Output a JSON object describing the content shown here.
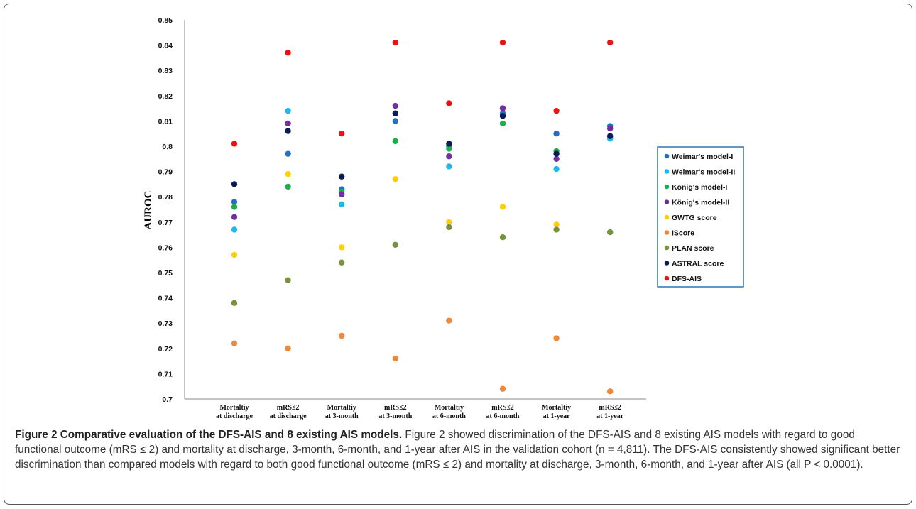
{
  "chart_data": {
    "type": "scatter",
    "title": "",
    "xlabel": "",
    "ylabel": "AUROC",
    "ylim": [
      0.7,
      0.85
    ],
    "ytick_step": 0.01,
    "y_tick_labels": [
      "0.7",
      "0.71",
      "0.72",
      "0.73",
      "0.74",
      "0.75",
      "0.76",
      "0.77",
      "0.78",
      "0.79",
      "0.8",
      "0.81",
      "0.82",
      "0.83",
      "0.84",
      "0.85"
    ],
    "grid": false,
    "legend_position": "right",
    "categories": [
      [
        "Mortaltiy",
        "at discharge"
      ],
      [
        "mRS≤2",
        "at discharge"
      ],
      [
        "Mortaltiy",
        "at 3-month"
      ],
      [
        "mRS≤2",
        "at 3-month"
      ],
      [
        "Mortaltiy",
        "at 6-month"
      ],
      [
        "mRS≤2",
        "at 6-month"
      ],
      [
        "Mortaltiy",
        "at 1-year"
      ],
      [
        "mRS≤2",
        "at 1-year"
      ]
    ],
    "series": [
      {
        "name": "Weimar's model-I",
        "color": "#1f6fc6",
        "values": [
          0.778,
          0.797,
          0.783,
          0.81,
          0.8,
          0.813,
          0.805,
          0.808
        ]
      },
      {
        "name": "Weimar's model-II",
        "color": "#1ab9ef",
        "values": [
          0.767,
          0.814,
          0.777,
          null,
          0.792,
          null,
          0.791,
          0.803
        ]
      },
      {
        "name": "König's model-I",
        "color": "#19b04c",
        "values": [
          0.776,
          0.784,
          0.782,
          0.802,
          0.799,
          0.809,
          0.798,
          0.804
        ]
      },
      {
        "name": "König's model-II",
        "color": "#7030a0",
        "values": [
          0.772,
          0.809,
          0.781,
          0.816,
          0.796,
          0.815,
          0.795,
          0.807
        ]
      },
      {
        "name": "GWTG score",
        "color": "#ffd000",
        "values": [
          0.757,
          0.789,
          0.76,
          0.787,
          0.77,
          0.776,
          0.769,
          0.766
        ]
      },
      {
        "name": "IScore",
        "color": "#f0883a",
        "values": [
          0.722,
          0.72,
          0.725,
          0.716,
          0.731,
          0.704,
          0.724,
          0.703
        ]
      },
      {
        "name": "PLAN score",
        "color": "#77933c",
        "values": [
          0.738,
          0.747,
          0.754,
          0.761,
          0.768,
          0.764,
          0.767,
          0.766
        ]
      },
      {
        "name": "ASTRAL score",
        "color": "#0c1a55",
        "values": [
          0.785,
          0.806,
          0.788,
          0.813,
          0.801,
          0.812,
          0.797,
          0.804
        ]
      },
      {
        "name": "DFS-AIS",
        "color": "#ee1111",
        "values": [
          0.801,
          0.837,
          0.805,
          0.841,
          0.817,
          0.841,
          0.814,
          0.841
        ]
      }
    ]
  },
  "caption": {
    "title": "Figure 2 Comparative evaluation of the DFS-AIS and 8 existing AIS models.",
    "body": " Figure 2 showed discrimination of the DFS-AIS and 8 existing AIS models with regard to good functional outcome (mRS ≤ 2) and mortality at discharge, 3-month, 6-month, and 1-year after AIS in the validation cohort (n = 4,811). The DFS-AIS consistently showed significant better discrimination than compared models with regard to both good functional outcome (mRS ≤ 2) and mortality at discharge, 3-month, 6-month, and 1-year after AIS (all P < 0.0001)."
  }
}
